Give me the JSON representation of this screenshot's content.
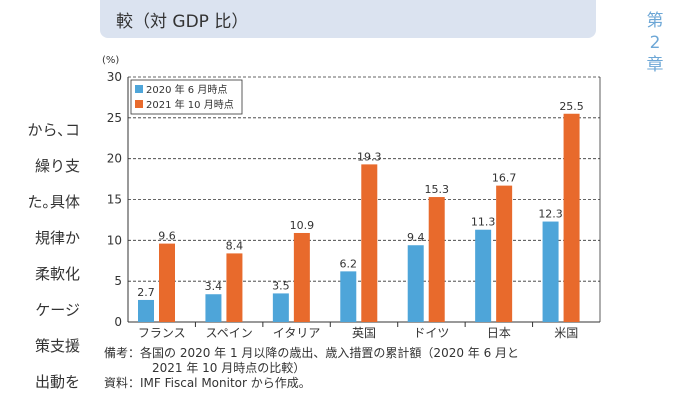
{
  "header": {
    "title": "較（対 GDP 比）"
  },
  "chapter_tag": {
    "line1": "第",
    "line2": "2",
    "line3": "章"
  },
  "body_fragments": [
    "から､コ",
    "繰り支",
    "た｡具体",
    "規律か",
    "柔軟化",
    "ケージ",
    "策支援",
    "出動を"
  ],
  "notes": {
    "line1": "備考：各国の 2020 年 1 月以降の歳出、歳入措置の累計額（2020 年 6 月と",
    "line2": "2021 年 10 月時点の比較）",
    "line3": "資料：IMF Fiscal Monitor から作成。"
  },
  "colors": {
    "series1": "#4ea5d9",
    "series2": "#e86a2c",
    "title_band": "#dbe3f0",
    "chapter": "#6da7d6"
  },
  "chart_data": {
    "type": "bar",
    "title": "較（対 GDP 比）",
    "ylabel": "(%)",
    "xlabel": "",
    "ylim": [
      0,
      30
    ],
    "yticks": [
      0,
      5,
      10,
      15,
      20,
      25,
      30
    ],
    "grid": "dashed horizontal",
    "legend_position": "top-left",
    "categories": [
      "フランス",
      "スペイン",
      "イタリア",
      "英国",
      "ドイツ",
      "日本",
      "米国"
    ],
    "series": [
      {
        "name": "2020 年 6 月時点",
        "values": [
          2.7,
          3.4,
          3.5,
          6.2,
          9.4,
          11.3,
          12.3
        ]
      },
      {
        "name": "2021 年 10 月時点",
        "values": [
          9.6,
          8.4,
          10.9,
          19.3,
          15.3,
          16.7,
          25.5
        ]
      }
    ]
  }
}
